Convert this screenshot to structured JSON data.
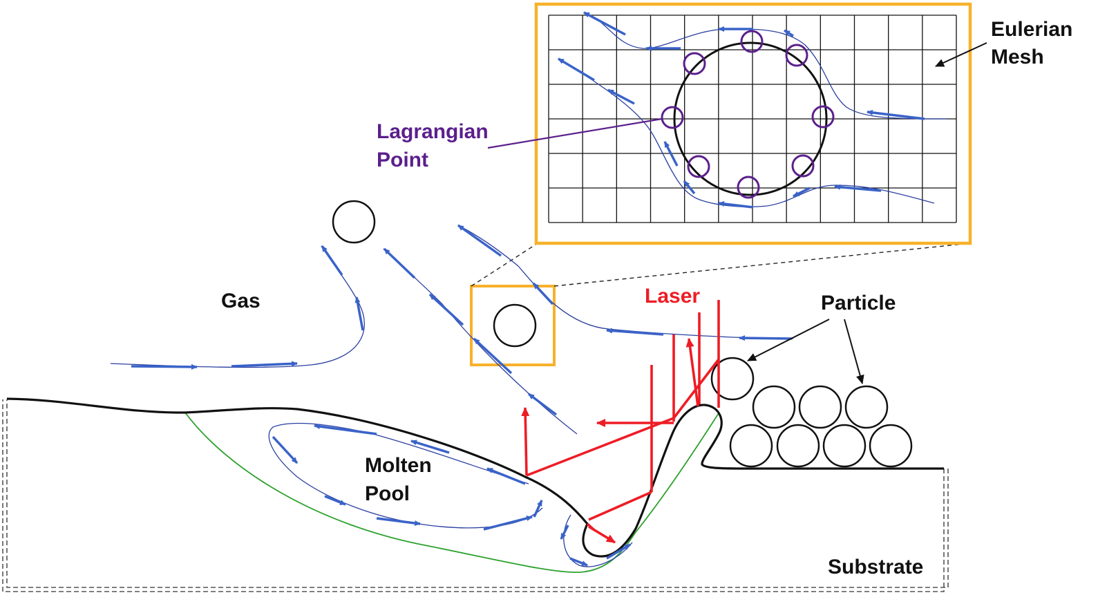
{
  "labels": {
    "eulerian_mesh_line1": "Eulerian",
    "eulerian_mesh_line2": "Mesh",
    "lagrangian_point_line1": "Lagrangian",
    "lagrangian_point_line2": "Point",
    "gas": "Gas",
    "laser": "Laser",
    "particle": "Particle",
    "molten_pool_line1": "Molten",
    "molten_pool_line2": "Pool",
    "substrate": "Substrate"
  },
  "colors": {
    "zoom_frame": "#f7b12a",
    "flow_arrows": "#3a63c8",
    "laser": "#ee1c25",
    "lagrangian": "#5b1f8c",
    "melt_boundary": "#2ca02c",
    "outline": "#111111"
  }
}
